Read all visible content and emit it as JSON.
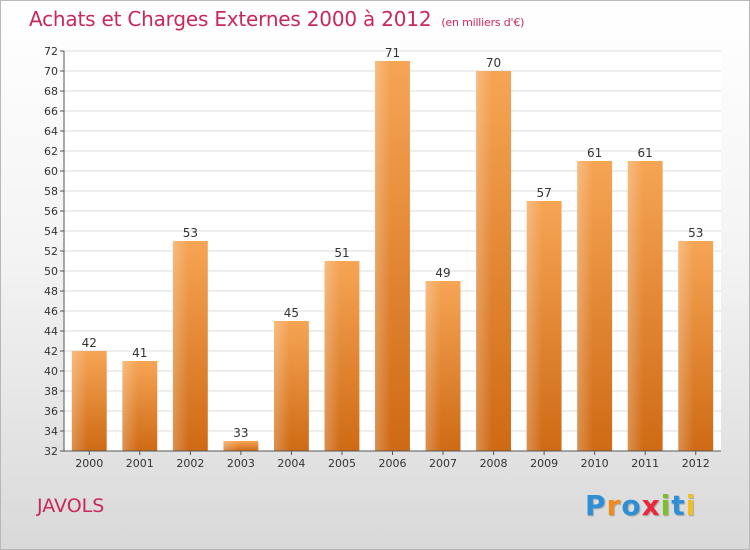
{
  "chart_data": {
    "type": "bar",
    "title": "Achats et Charges Externes 2000 à 2012",
    "unit": "(en milliers d'€)",
    "categories": [
      "2000",
      "2001",
      "2002",
      "2003",
      "2004",
      "2005",
      "2006",
      "2007",
      "2008",
      "2009",
      "2010",
      "2011",
      "2012"
    ],
    "values": [
      42,
      41,
      53,
      33,
      45,
      51,
      71,
      49,
      70,
      57,
      61,
      61,
      53
    ],
    "xlabel": "",
    "ylabel": "",
    "ylim": [
      32,
      72
    ],
    "ytick_step": 2,
    "grid": true,
    "bar_color": "#f08c30"
  },
  "place_label": "JAVOLS",
  "logo": {
    "letters": [
      "P",
      "r",
      "o",
      "x",
      "i",
      "t",
      "i"
    ],
    "colors": [
      "#2e8fd6",
      "#f08c1e",
      "#2e8fd6",
      "#e8283c",
      "#7cbf2a",
      "#2e8fd6",
      "#f0c020"
    ]
  }
}
